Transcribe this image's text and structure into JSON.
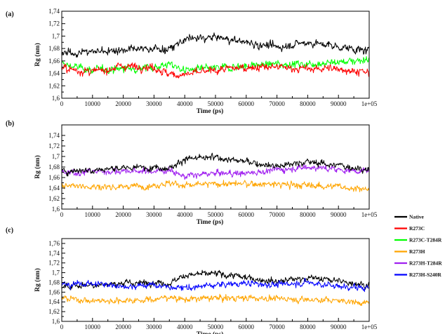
{
  "figure": {
    "panels": [
      {
        "label": "(a)",
        "xlabel": "Time (ps)",
        "ylabel": "Rg (nm)"
      },
      {
        "label": "(b)",
        "xlabel": "Time (ps)",
        "ylabel": "Rg (nm)"
      },
      {
        "label": "(c)",
        "xlabel": "Time (ps)",
        "ylabel": "Rg (nm)"
      }
    ],
    "legend": [
      {
        "name": "Native",
        "color": "#000000"
      },
      {
        "name": "R273C",
        "color": "#ff0000"
      },
      {
        "name": "R273C-T284R",
        "color": "#00ff00"
      },
      {
        "name": "R273H",
        "color": "#ffa500"
      },
      {
        "name": "R273H-T284R",
        "color": "#a020f0"
      },
      {
        "name": "R273H-S240R",
        "color": "#0000ff"
      }
    ]
  },
  "chart_data": [
    {
      "type": "line",
      "panel": "(a)",
      "xlabel": "Time (ps)",
      "ylabel": "Rg (nm)",
      "xlim": [
        0,
        100000
      ],
      "ylim": [
        1.6,
        1.74
      ],
      "xticks": [
        0,
        10000,
        20000,
        30000,
        40000,
        50000,
        60000,
        70000,
        80000,
        90000,
        100000
      ],
      "xtick_labels": [
        "0",
        "10000",
        "20000",
        "30000",
        "40000",
        "50000",
        "60000",
        "70000",
        "80000",
        "90000",
        "1e+05"
      ],
      "yticks": [
        1.6,
        1.62,
        1.64,
        1.66,
        1.68,
        1.7,
        1.72,
        1.74
      ],
      "ytick_labels": [
        "1,6",
        "1,62",
        "1,64",
        "1,66",
        "1,68",
        "1,7",
        "1,72",
        "1,74"
      ],
      "series": [
        {
          "name": "R273C-T284R",
          "color": "#00ff00",
          "x": [
            0,
            10000,
            20000,
            30000,
            35000,
            40000,
            50000,
            60000,
            70000,
            80000,
            90000,
            100000
          ],
          "y": [
            1.655,
            1.645,
            1.648,
            1.65,
            1.655,
            1.645,
            1.648,
            1.652,
            1.655,
            1.655,
            1.658,
            1.663
          ]
        },
        {
          "name": "R273C",
          "color": "#ff0000",
          "x": [
            0,
            10000,
            20000,
            30000,
            35000,
            40000,
            50000,
            60000,
            70000,
            80000,
            90000,
            100000
          ],
          "y": [
            1.648,
            1.642,
            1.652,
            1.65,
            1.638,
            1.638,
            1.645,
            1.65,
            1.65,
            1.647,
            1.648,
            1.64
          ]
        },
        {
          "name": "Native",
          "color": "#000000",
          "x": [
            0,
            10000,
            20000,
            30000,
            35000,
            40000,
            50000,
            60000,
            70000,
            80000,
            90000,
            100000
          ],
          "y": [
            1.672,
            1.675,
            1.678,
            1.68,
            1.678,
            1.695,
            1.698,
            1.69,
            1.682,
            1.69,
            1.683,
            1.675
          ]
        }
      ]
    },
    {
      "type": "line",
      "panel": "(b)",
      "xlabel": "Time (ps)",
      "ylabel": "Rg (nm)",
      "xlim": [
        0,
        100000
      ],
      "ylim": [
        1.6,
        1.76
      ],
      "xticks": [
        0,
        10000,
        20000,
        30000,
        40000,
        50000,
        60000,
        70000,
        80000,
        90000,
        100000
      ],
      "xtick_labels": [
        "0",
        "10000",
        "20000",
        "30000",
        "40000",
        "50000",
        "60000",
        "70000",
        "80000",
        "90000",
        "1e+05"
      ],
      "yticks": [
        1.6,
        1.62,
        1.64,
        1.66,
        1.68,
        1.7,
        1.72,
        1.74
      ],
      "ytick_labels": [
        "1,6",
        "1,62",
        "1,64",
        "1,66",
        "1,68",
        "1,7",
        "1,72",
        "1,74"
      ],
      "series": [
        {
          "name": "R273H",
          "color": "#ffa500",
          "x": [
            0,
            10000,
            20000,
            30000,
            35000,
            40000,
            50000,
            60000,
            70000,
            80000,
            90000,
            100000
          ],
          "y": [
            1.648,
            1.642,
            1.643,
            1.645,
            1.65,
            1.645,
            1.648,
            1.648,
            1.647,
            1.645,
            1.643,
            1.637
          ]
        },
        {
          "name": "R273H-T284R",
          "color": "#a020f0",
          "x": [
            0,
            10000,
            20000,
            30000,
            35000,
            40000,
            50000,
            60000,
            70000,
            80000,
            90000,
            100000
          ],
          "y": [
            1.668,
            1.672,
            1.672,
            1.672,
            1.675,
            1.662,
            1.668,
            1.668,
            1.675,
            1.68,
            1.675,
            1.672
          ]
        },
        {
          "name": "Native",
          "color": "#000000",
          "x": [
            0,
            10000,
            20000,
            30000,
            35000,
            40000,
            50000,
            60000,
            70000,
            80000,
            90000,
            100000
          ],
          "y": [
            1.672,
            1.675,
            1.678,
            1.68,
            1.678,
            1.695,
            1.698,
            1.69,
            1.682,
            1.69,
            1.683,
            1.675
          ]
        }
      ]
    },
    {
      "type": "line",
      "panel": "(c)",
      "xlabel": "Time (ps)",
      "ylabel": "Rg (nm)",
      "xlim": [
        0,
        100000
      ],
      "ylim": [
        1.6,
        1.77
      ],
      "xticks": [
        0,
        10000,
        20000,
        30000,
        40000,
        50000,
        60000,
        70000,
        80000,
        90000,
        100000
      ],
      "xtick_labels": [
        "0",
        "10000",
        "20000",
        "30000",
        "40000",
        "50000",
        "60000",
        "70000",
        "80000",
        "90000",
        "1e+05"
      ],
      "yticks": [
        1.6,
        1.62,
        1.64,
        1.66,
        1.68,
        1.7,
        1.72,
        1.74,
        1.76
      ],
      "ytick_labels": [
        "1,6",
        "1,62",
        "1,64",
        "1,66",
        "1,68",
        "1,7",
        "1,72",
        "1,74",
        "1,76"
      ],
      "series": [
        {
          "name": "R273H",
          "color": "#ffa500",
          "x": [
            0,
            10000,
            20000,
            30000,
            35000,
            40000,
            50000,
            60000,
            70000,
            80000,
            90000,
            100000
          ],
          "y": [
            1.648,
            1.642,
            1.643,
            1.645,
            1.65,
            1.645,
            1.648,
            1.648,
            1.647,
            1.645,
            1.643,
            1.637
          ]
        },
        {
          "name": "Native",
          "color": "#000000",
          "x": [
            0,
            10000,
            20000,
            30000,
            35000,
            40000,
            50000,
            60000,
            70000,
            80000,
            90000,
            100000
          ],
          "y": [
            1.672,
            1.675,
            1.678,
            1.68,
            1.678,
            1.695,
            1.698,
            1.69,
            1.682,
            1.69,
            1.683,
            1.675
          ]
        },
        {
          "name": "R273H-S240R",
          "color": "#0000ff",
          "x": [
            0,
            10000,
            20000,
            30000,
            35000,
            40000,
            50000,
            60000,
            70000,
            80000,
            90000,
            100000
          ],
          "y": [
            1.675,
            1.678,
            1.672,
            1.675,
            1.67,
            1.668,
            1.675,
            1.678,
            1.675,
            1.68,
            1.672,
            1.668
          ]
        }
      ]
    }
  ]
}
